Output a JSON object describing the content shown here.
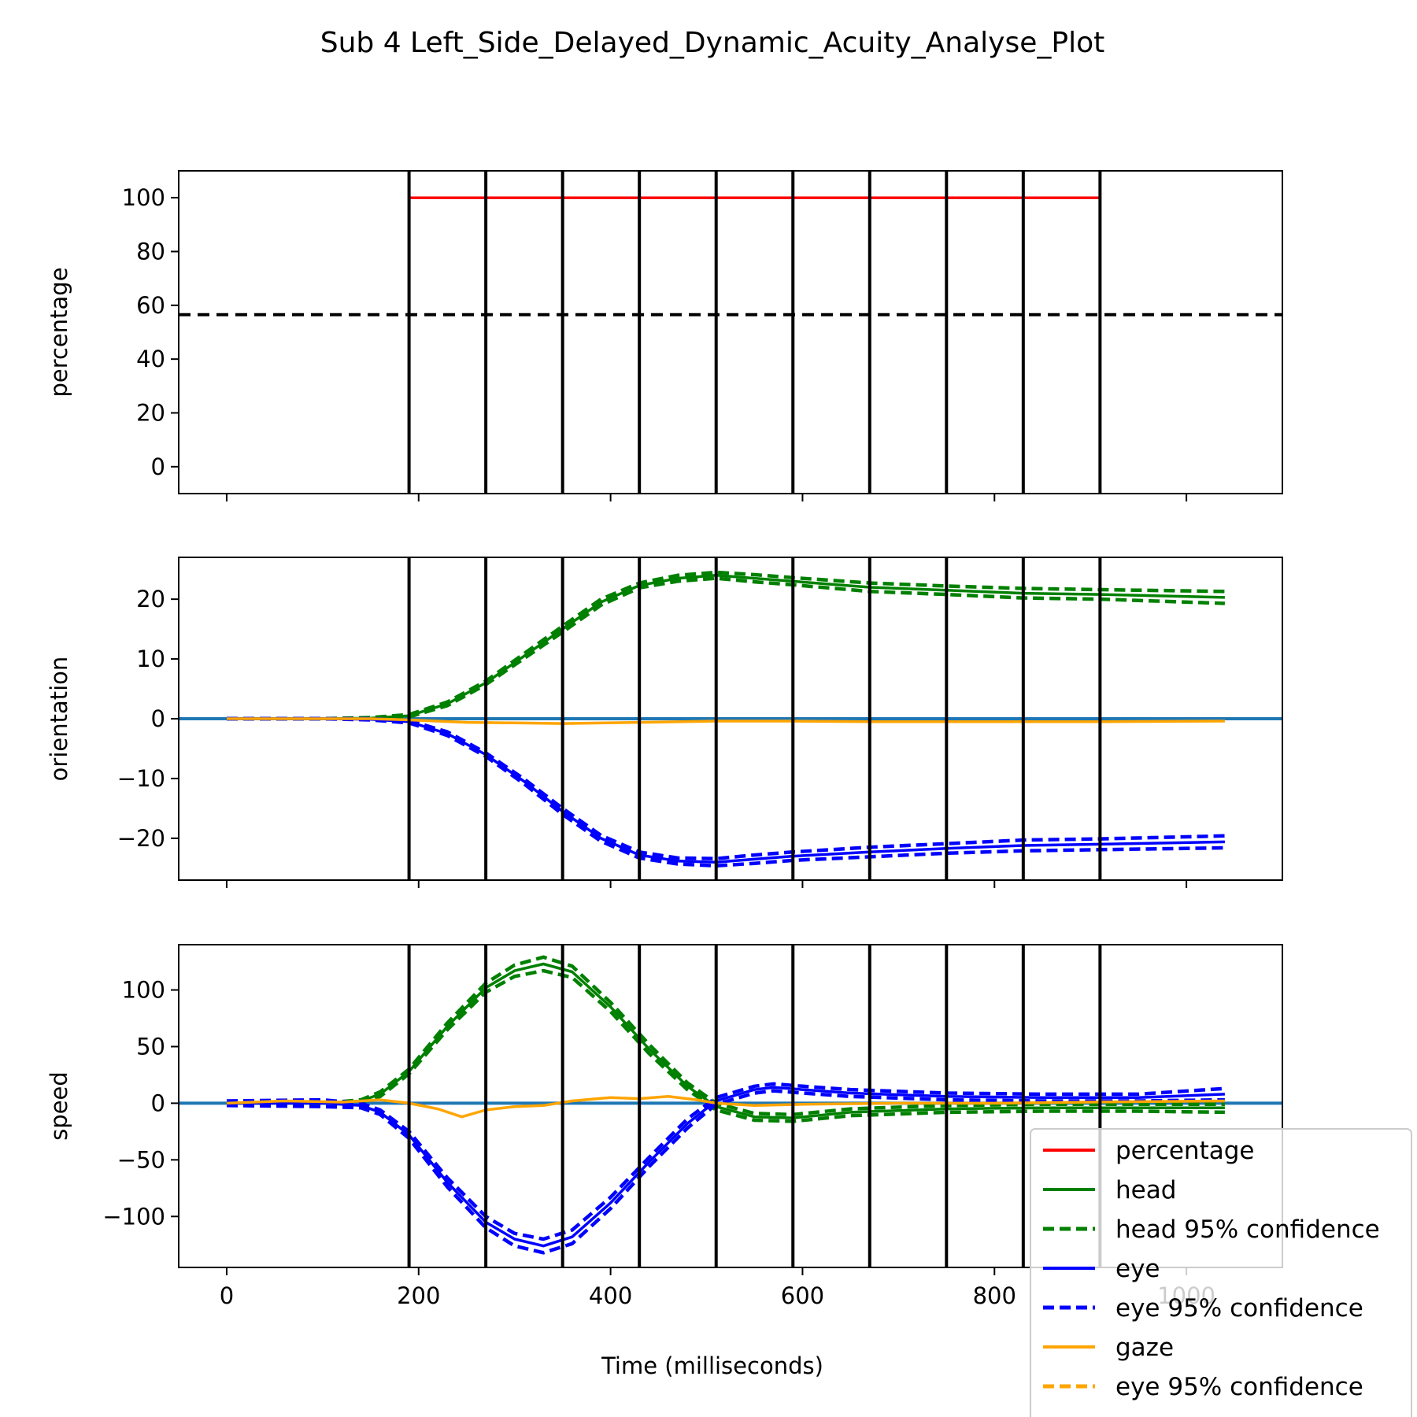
{
  "chart_data": {
    "type": "line",
    "title": "Sub 4 Left_Side_Delayed_Dynamic_Acuity_Analyse_Plot",
    "xlabel": "Time (milliseconds)",
    "xlim": [
      -50,
      1100
    ],
    "x_ticks": [
      0,
      200,
      400,
      600,
      800,
      1000
    ],
    "x_tick_labels": [
      "0",
      "200",
      "400",
      "600",
      "800",
      "1000"
    ],
    "vertical_lines_x": [
      190,
      270,
      350,
      430,
      510,
      590,
      670,
      750,
      830,
      910
    ],
    "panels": [
      {
        "id": "percentage",
        "ylabel": "percentage",
        "ylim": [
          -10,
          110
        ],
        "y_ticks": [
          0,
          20,
          40,
          60,
          80,
          100
        ],
        "y_tick_labels": [
          "0",
          "20",
          "40",
          "60",
          "80",
          "100"
        ],
        "reference_line": {
          "y": 56.5,
          "style": "dashed",
          "color": "#000000"
        },
        "series": [
          {
            "name": "percentage",
            "color": "#ff0000",
            "style": "solid",
            "x": [
              190,
              910
            ],
            "y": [
              100,
              100
            ]
          }
        ]
      },
      {
        "id": "orientation",
        "ylabel": "orientation",
        "ylim": [
          -27,
          27
        ],
        "y_ticks": [
          -20,
          -10,
          0,
          10,
          20
        ],
        "y_tick_labels": [
          "−20",
          "−10",
          "0",
          "10",
          "20"
        ],
        "zero_line_color": "#1f77b4",
        "series": [
          {
            "name": "head",
            "color": "#008000",
            "style": "solid",
            "x": [
              0,
              100,
              150,
              190,
              230,
              270,
              310,
              350,
              390,
              430,
              470,
              510,
              550,
              590,
              670,
              750,
              830,
              910,
              1040
            ],
            "y": [
              0,
              0,
              0.1,
              0.5,
              2.5,
              6,
              10.5,
              15,
              19.5,
              22.3,
              23.5,
              24,
              23.5,
              23,
              22,
              21.5,
              21,
              20.8,
              20.3
            ]
          },
          {
            "name": "head 95% confidence",
            "color": "#008000",
            "style": "dashed",
            "x": [
              0,
              100,
              150,
              190,
              230,
              270,
              310,
              350,
              390,
              430,
              470,
              510,
              550,
              590,
              670,
              750,
              830,
              910,
              1040
            ],
            "y": [
              0,
              0,
              0.2,
              0.7,
              2.8,
              6.3,
              10.9,
              15.5,
              20,
              22.7,
              24,
              24.5,
              24.1,
              23.6,
              22.7,
              22.2,
              21.8,
              21.6,
              21.3
            ]
          },
          {
            "name": "head 95% confidence",
            "color": "#008000",
            "style": "dashed",
            "x": [
              0,
              100,
              150,
              190,
              230,
              270,
              310,
              350,
              390,
              430,
              470,
              510,
              550,
              590,
              670,
              750,
              830,
              910,
              1040
            ],
            "y": [
              0,
              0,
              0,
              0.3,
              2.2,
              5.7,
              10.1,
              14.5,
              19,
              21.9,
              23,
              23.5,
              22.9,
              22.4,
              21.3,
              20.8,
              20.2,
              20,
              19.3
            ]
          },
          {
            "name": "eye",
            "color": "#0000ff",
            "style": "solid",
            "x": [
              0,
              100,
              150,
              190,
              230,
              270,
              310,
              350,
              390,
              430,
              470,
              510,
              550,
              590,
              670,
              750,
              830,
              910,
              1040
            ],
            "y": [
              0,
              0,
              -0.1,
              -0.5,
              -2.5,
              -6,
              -10.5,
              -15.5,
              -20,
              -22.8,
              -23.8,
              -24,
              -23.5,
              -23,
              -22.3,
              -21.7,
              -21.2,
              -21,
              -20.6
            ]
          },
          {
            "name": "eye 95% confidence",
            "color": "#0000ff",
            "style": "dashed",
            "x": [
              0,
              100,
              150,
              190,
              230,
              270,
              310,
              350,
              390,
              430,
              470,
              510,
              550,
              590,
              670,
              750,
              830,
              910,
              1040
            ],
            "y": [
              0,
              0,
              0,
              -0.3,
              -2.2,
              -5.7,
              -10.1,
              -15,
              -19.5,
              -22.3,
              -23.3,
              -23.4,
              -22.8,
              -22.3,
              -21.5,
              -20.9,
              -20.3,
              -20.1,
              -19.6
            ]
          },
          {
            "name": "eye 95% confidence",
            "color": "#0000ff",
            "style": "dashed",
            "x": [
              0,
              100,
              150,
              190,
              230,
              270,
              310,
              350,
              390,
              430,
              470,
              510,
              550,
              590,
              670,
              750,
              830,
              910,
              1040
            ],
            "y": [
              0,
              0,
              -0.2,
              -0.7,
              -2.8,
              -6.3,
              -10.9,
              -16,
              -20.5,
              -23.3,
              -24.3,
              -24.6,
              -24.2,
              -23.7,
              -23.1,
              -22.5,
              -22.1,
              -21.9,
              -21.6
            ]
          },
          {
            "name": "gaze",
            "color": "#ffa500",
            "style": "solid",
            "x": [
              0,
              150,
              190,
              250,
              300,
              350,
              430,
              510,
              590,
              670,
              750,
              830,
              910,
              1040
            ],
            "y": [
              0,
              0,
              -0.2,
              -0.6,
              -0.7,
              -0.8,
              -0.6,
              -0.4,
              -0.4,
              -0.5,
              -0.5,
              -0.5,
              -0.5,
              -0.4
            ]
          }
        ]
      },
      {
        "id": "speed",
        "ylabel": "speed",
        "ylim": [
          -145,
          140
        ],
        "y_ticks": [
          -100,
          -50,
          0,
          50,
          100
        ],
        "y_tick_labels": [
          "−100",
          "−50",
          "0",
          "50",
          "100"
        ],
        "zero_line_color": "#1f77b4",
        "series": [
          {
            "name": "head",
            "color": "#008000",
            "style": "solid",
            "x": [
              0,
              100,
              140,
              160,
              190,
              230,
              270,
              300,
              330,
              360,
              400,
              440,
              480,
              510,
              550,
              590,
              650,
              750,
              850,
              950,
              1040
            ],
            "y": [
              0,
              0,
              2,
              8,
              28,
              68,
              102,
              117,
              123,
              116,
              85,
              48,
              15,
              -3,
              -12,
              -13,
              -8,
              -5,
              -4,
              -4,
              -4
            ]
          },
          {
            "name": "head 95% confidence",
            "color": "#008000",
            "style": "dashed",
            "x": [
              0,
              100,
              140,
              160,
              190,
              230,
              270,
              300,
              330,
              360,
              400,
              440,
              480,
              510,
              550,
              590,
              650,
              750,
              850,
              950,
              1040
            ],
            "y": [
              0,
              0,
              3,
              10,
              30,
              71,
              106,
              122,
              129,
              121,
              89,
              52,
              18,
              0,
              -9,
              -10,
              -5,
              -2,
              -1,
              -1,
              -1
            ]
          },
          {
            "name": "head 95% confidence",
            "color": "#008000",
            "style": "dashed",
            "x": [
              0,
              100,
              140,
              160,
              190,
              230,
              270,
              300,
              330,
              360,
              400,
              440,
              480,
              510,
              550,
              590,
              650,
              750,
              850,
              950,
              1040
            ],
            "y": [
              0,
              0,
              1,
              6,
              26,
              65,
              98,
              112,
              117,
              111,
              81,
              44,
              12,
              -6,
              -15,
              -16,
              -11,
              -8,
              -7,
              -7,
              -8
            ]
          },
          {
            "name": "eye",
            "color": "#0000ff",
            "style": "solid",
            "x": [
              0,
              100,
              140,
              160,
              190,
              230,
              270,
              300,
              330,
              360,
              400,
              440,
              480,
              510,
              550,
              570,
              600,
              650,
              750,
              850,
              950,
              1040
            ],
            "y": [
              0,
              0,
              -2,
              -8,
              -28,
              -70,
              -105,
              -120,
              -126,
              -118,
              -88,
              -52,
              -18,
              2,
              12,
              14,
              12,
              9,
              6,
              5,
              5,
              8
            ]
          },
          {
            "name": "eye 95% confidence",
            "color": "#0000ff",
            "style": "dashed",
            "x": [
              0,
              100,
              140,
              160,
              190,
              230,
              270,
              300,
              330,
              360,
              400,
              440,
              480,
              510,
              550,
              570,
              600,
              650,
              750,
              850,
              950,
              1040
            ],
            "y": [
              2,
              3,
              0,
              -6,
              -25,
              -66,
              -100,
              -115,
              -120,
              -112,
              -83,
              -48,
              -14,
              5,
              15,
              17,
              15,
              12,
              9,
              8,
              8,
              13
            ]
          },
          {
            "name": "eye 95% confidence",
            "color": "#0000ff",
            "style": "dashed",
            "x": [
              0,
              100,
              140,
              160,
              190,
              230,
              270,
              300,
              330,
              360,
              400,
              440,
              480,
              510,
              550,
              570,
              600,
              650,
              750,
              850,
              950,
              1040
            ],
            "y": [
              -2,
              -3,
              -4,
              -10,
              -31,
              -74,
              -110,
              -126,
              -132,
              -124,
              -93,
              -56,
              -22,
              -1,
              9,
              11,
              9,
              6,
              3,
              2,
              2,
              3
            ]
          },
          {
            "name": "gaze",
            "color": "#ffa500",
            "style": "solid",
            "x": [
              0,
              60,
              120,
              160,
              190,
              220,
              245,
              270,
              300,
              330,
              360,
              400,
              430,
              460,
              490,
              510,
              550,
              600,
              700,
              800,
              900,
              1040
            ],
            "y": [
              0,
              2,
              1,
              3,
              0,
              -5,
              -12,
              -6,
              -3,
              -2,
              2,
              5,
              4,
              6,
              3,
              0,
              -2,
              -1,
              0,
              0,
              1,
              2
            ]
          }
        ]
      }
    ],
    "legend": {
      "position": "lower-right",
      "entries": [
        {
          "label": "percentage",
          "color": "#ff0000",
          "style": "solid"
        },
        {
          "label": "head",
          "color": "#008000",
          "style": "solid"
        },
        {
          "label": "head 95% confidence",
          "color": "#008000",
          "style": "dashed"
        },
        {
          "label": "eye",
          "color": "#0000ff",
          "style": "solid"
        },
        {
          "label": "eye 95% confidence",
          "color": "#0000ff",
          "style": "dashed"
        },
        {
          "label": "gaze",
          "color": "#ffa500",
          "style": "solid"
        },
        {
          "label": "eye 95% confidence",
          "color": "#ffa500",
          "style": "dashed"
        }
      ]
    }
  }
}
